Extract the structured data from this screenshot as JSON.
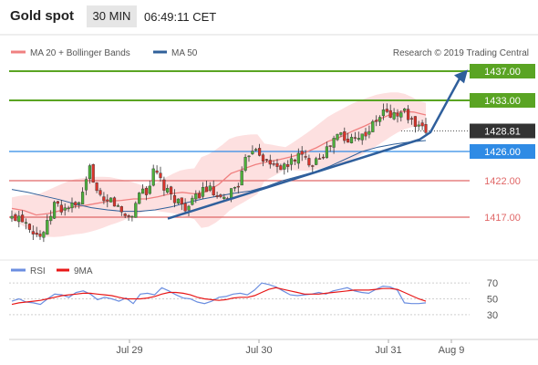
{
  "header": {
    "title": "Gold spot",
    "timeframe": "30 MIN",
    "time": "06:49:11 CET"
  },
  "colors": {
    "resistance": "#5aa423",
    "pivot": "#2f8be5",
    "support": "#e06767",
    "current": "#333333",
    "ma20": "#f08080",
    "bollinger": "#fde0e0",
    "ma50": "#30609a",
    "rsi": "#6b8ee0",
    "rsi_ma": "#e81818",
    "candle_up": "#4caf3a",
    "candle_down": "#d9342b"
  },
  "chart_data": [
    {
      "type": "candlestick",
      "legend": {
        "ma": "MA 20 + Bollinger Bands",
        "ma50": "MA 50"
      },
      "copyright": "Research © 2019 Trading Central",
      "levels": [
        {
          "value": 1437.0,
          "label": "1437.00",
          "kind": "resistance"
        },
        {
          "value": 1433.0,
          "label": "1433.00",
          "kind": "resistance"
        },
        {
          "value": 1428.81,
          "label": "1428.81",
          "kind": "current"
        },
        {
          "value": 1426.0,
          "label": "1426.00",
          "kind": "pivot"
        },
        {
          "value": 1422.0,
          "label": "1422.00",
          "kind": "support"
        },
        {
          "value": 1417.0,
          "label": "1417.00",
          "kind": "support"
        }
      ],
      "x_ticks": [
        "Jul 29",
        "Jul 30",
        "Jul 31",
        "Aug 9"
      ],
      "close_path": [
        1416.8,
        1417.3,
        1416.5,
        1415.2,
        1414.3,
        1416.0,
        1419.0,
        1418.0,
        1418.5,
        1418.3,
        1420.0,
        1424.0,
        1420.0,
        1418.5,
        1419.5,
        1418.0,
        1417.0,
        1417.5,
        1421.0,
        1420.5,
        1423.5,
        1421.5,
        1420.0,
        1419.5,
        1418.5,
        1418.5,
        1420.0,
        1421.0,
        1420.5,
        1419.0,
        1419.5,
        1421.0,
        1422.0,
        1425.5,
        1427.0,
        1425.5,
        1424.0,
        1424.5,
        1423.5,
        1424.5,
        1425.5,
        1425.0,
        1424.5,
        1425.5,
        1426.0,
        1427.5,
        1428.5,
        1427.0,
        1428.5,
        1428.0,
        1429.0,
        1430.0,
        1431.5,
        1431.0,
        1431.0,
        1431.5,
        1430.0,
        1429.0,
        1428.7
      ],
      "ma20_path": [
        1418.2,
        1417.9,
        1417.3,
        1417.5,
        1417.9,
        1418.4,
        1418.6,
        1418.9,
        1419.2,
        1419.3,
        1419.5,
        1419.5,
        1419.8,
        1420.2,
        1420.4,
        1420.2,
        1420.5,
        1421.5,
        1423.0,
        1423.6,
        1424.2,
        1424.6,
        1424.9,
        1425.3,
        1425.8,
        1426.5,
        1427.4,
        1428.0,
        1428.8,
        1429.5,
        1430.3,
        1431.0,
        1431.5,
        1431.4,
        1431.0
      ],
      "ma50_path": [
        1420.8,
        1420.4,
        1419.9,
        1419.4,
        1418.8,
        1418.3,
        1418.0,
        1417.8,
        1417.8,
        1418.0,
        1418.4,
        1419.0,
        1419.5,
        1419.9,
        1420.3,
        1420.6,
        1421.2,
        1422.0,
        1422.6,
        1423.2,
        1424.0,
        1425.0,
        1426.0,
        1426.6,
        1427.0,
        1427.3,
        1427.5
      ],
      "trend_arrow": {
        "from": 1416.8,
        "to": 1437.2
      }
    },
    {
      "type": "line",
      "legend": {
        "rsi": "RSI",
        "ma": "9MA"
      },
      "y_ticks": [
        70,
        50,
        30
      ],
      "rsi": [
        47,
        50,
        46,
        45,
        43,
        50,
        56,
        55,
        52,
        58,
        60,
        56,
        49,
        52,
        50,
        47,
        51,
        44,
        56,
        57,
        55,
        64,
        60,
        55,
        51,
        50,
        46,
        44,
        47,
        52,
        53,
        56,
        57,
        55,
        61,
        70,
        68,
        65,
        60,
        55,
        54,
        55,
        56,
        58,
        56,
        60,
        62,
        64,
        60,
        58,
        57,
        62,
        66,
        65,
        61,
        45,
        44,
        44,
        45
      ],
      "rsi_ma": [
        43,
        45,
        46,
        47,
        48,
        50,
        52,
        54,
        55,
        56,
        57,
        57,
        56,
        55,
        54,
        52,
        50,
        50,
        50,
        51,
        53,
        56,
        58,
        58,
        57,
        55,
        52,
        50,
        49,
        48,
        49,
        51,
        52,
        52,
        54,
        58,
        62,
        64,
        62,
        60,
        58,
        56,
        56,
        56,
        57,
        58,
        59,
        60,
        61,
        61,
        61,
        62,
        63,
        63,
        62,
        58,
        54,
        50,
        47
      ]
    }
  ]
}
